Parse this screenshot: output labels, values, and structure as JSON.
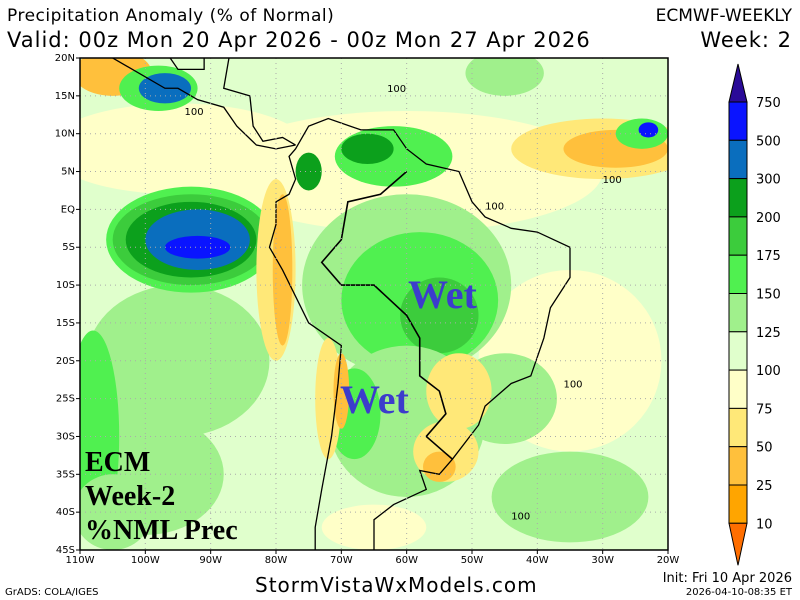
{
  "header": {
    "title": "Precipitation Anomaly (% of Normal)",
    "valid": "Valid: 00z Mon 20 Apr 2026 - 00z Mon 27 Apr 2026",
    "model": "ECMWF-WEEKLY",
    "week": "Week: 2"
  },
  "map": {
    "lat_ticks": [
      "20N",
      "15N",
      "10N",
      "5N",
      "EQ",
      "5S",
      "10S",
      "15S",
      "20S",
      "25S",
      "30S",
      "35S",
      "40S",
      "45S"
    ],
    "lon_ticks": [
      "110W",
      "100W",
      "90W",
      "80W",
      "70W",
      "60W",
      "50W",
      "40W",
      "30W",
      "20W"
    ],
    "lat_range": [
      -45,
      20
    ],
    "lon_range": [
      -110,
      -20
    ],
    "contour_label": "100",
    "annotations": [
      "Wet",
      "Wet"
    ],
    "overlay_lines": [
      "ECM",
      "Week-2",
      "%NML Prec"
    ]
  },
  "colorbar": {
    "levels": [
      "750",
      "500",
      "300",
      "200",
      "175",
      "150",
      "125",
      "100",
      "75",
      "50",
      "25",
      "10"
    ],
    "colors": [
      "#2a0a98",
      "#0a14ff",
      "#0a6ebe",
      "#0ca01c",
      "#3ccc3c",
      "#50f050",
      "#a0f08c",
      "#e0ffcc",
      "#ffffc8",
      "#ffe878",
      "#ffc03c",
      "#ffa500",
      "#ff6e00"
    ]
  },
  "footer": {
    "grads": "GrADS: COLA/IGES",
    "site": "StormVistaWxModels.com",
    "init": "Init: Fri 10 Apr 2026",
    "stamp": "2026-04-10-08:35 ET"
  }
}
